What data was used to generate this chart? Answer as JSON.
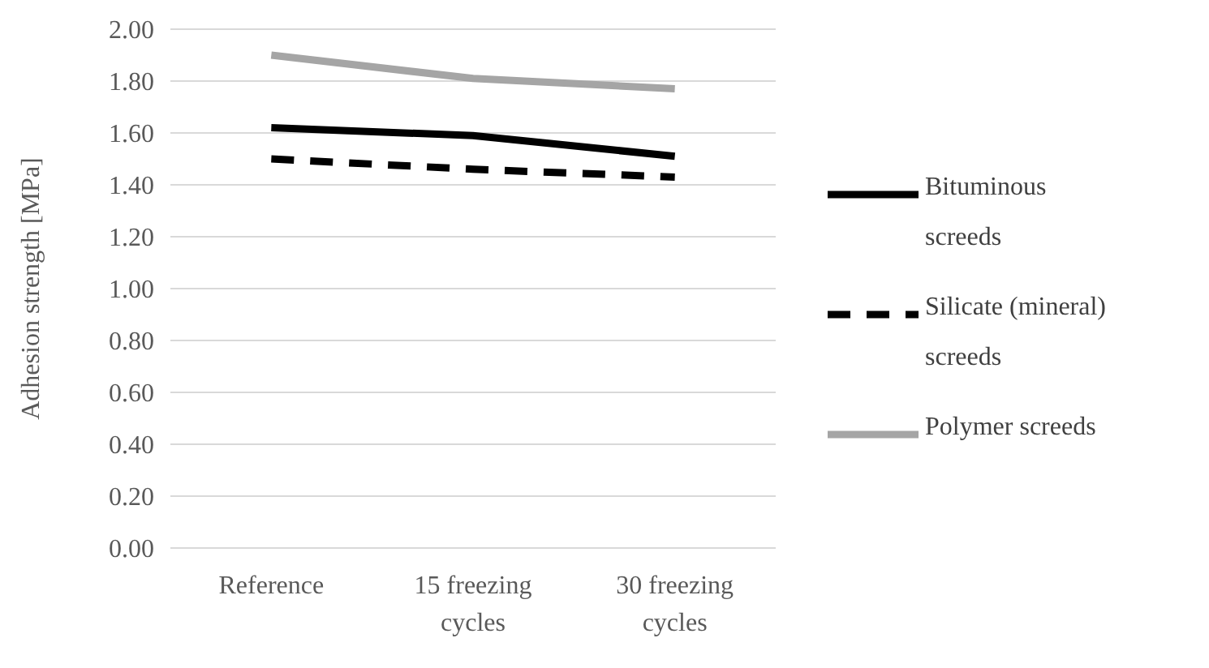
{
  "chart_data": {
    "type": "line",
    "ylabel": "Adhesion strength [MPa]",
    "categories": [
      "Reference",
      "15 freezing cycles",
      "30 freezing cycles"
    ],
    "series": [
      {
        "name": "Bituminous screeds",
        "color": "#000000",
        "values": [
          1.62,
          1.59,
          1.51
        ],
        "line_style": "solid"
      },
      {
        "name": "Silicate (mineral) screeds",
        "color": "#000000",
        "values": [
          1.5,
          1.46,
          1.43
        ],
        "line_style": "dashed"
      },
      {
        "name": "Polymer screeds",
        "color": "#a5a5a5",
        "values": [
          1.9,
          1.81,
          1.77
        ],
        "line_style": "solid"
      }
    ],
    "ylim": [
      0,
      2
    ],
    "yticks": [
      {
        "value": 0,
        "label": "0.00"
      },
      {
        "value": 0.2,
        "label": "0.20"
      },
      {
        "value": 0.4,
        "label": "0.40"
      },
      {
        "value": 0.6,
        "label": "0.60"
      },
      {
        "value": 0.8,
        "label": "0.80"
      },
      {
        "value": 1,
        "label": "1.00"
      },
      {
        "value": 1.2,
        "label": "1.20"
      },
      {
        "value": 1.4,
        "label": "1.40"
      },
      {
        "value": 1.6,
        "label": "1.60"
      },
      {
        "value": 1.8,
        "label": "1.80"
      },
      {
        "value": 2,
        "label": "2.00"
      }
    ],
    "grid": "y",
    "legend": "right"
  }
}
